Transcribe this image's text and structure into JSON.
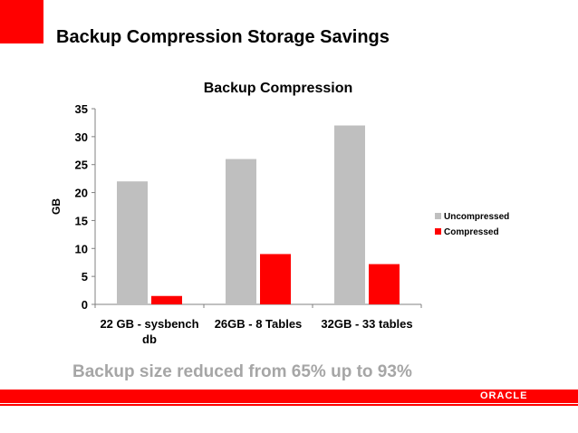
{
  "slide": {
    "title": "Backup Compression Storage Savings",
    "subtitle": "Backup size reduced from 65% up to 93%",
    "logo_text": "ORACLE",
    "brand_color": "#ff0000"
  },
  "chart_data": {
    "type": "bar",
    "title": "Backup Compression",
    "ylabel": "GB",
    "xlabel": "",
    "ylim": [
      0,
      35
    ],
    "yticks": [
      0,
      5,
      10,
      15,
      20,
      25,
      30,
      35
    ],
    "categories": [
      [
        "22 GB - sysbench",
        "db"
      ],
      [
        "26GB - 8 Tables"
      ],
      [
        "32GB - 33 tables"
      ]
    ],
    "series": [
      {
        "name": "Uncompressed",
        "color": "#bfbfbf",
        "values": [
          22,
          26,
          32
        ]
      },
      {
        "name": "Compressed",
        "color": "#ff0000",
        "values": [
          1.5,
          9,
          7.2
        ]
      }
    ],
    "grid": false,
    "legend": "right"
  }
}
